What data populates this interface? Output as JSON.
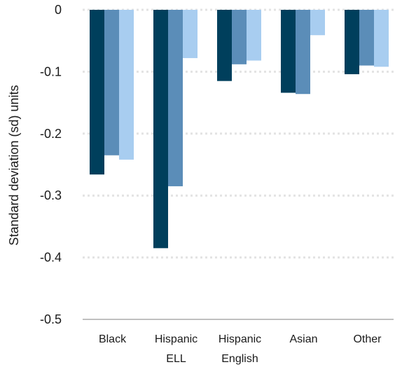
{
  "chart_data": {
    "type": "bar",
    "ylabel": "Standard deviation (sd) units",
    "ylim": [
      -0.5,
      0
    ],
    "yticks": [
      0,
      -0.1,
      -0.2,
      -0.3,
      -0.4,
      -0.5
    ],
    "ytick_labels": [
      "0",
      "-0.1",
      "-0.2",
      "-0.3",
      "-0.4",
      "-0.5"
    ],
    "grid": "horizontal dotted",
    "legend": "none",
    "categories": [
      [
        "Black"
      ],
      [
        "Hispanic",
        "ELL"
      ],
      [
        "Hispanic",
        "English"
      ],
      [
        "Asian"
      ],
      [
        "Other"
      ]
    ],
    "series": [
      {
        "color": "#003f5c",
        "values": [
          -0.266,
          -0.385,
          -0.115,
          -0.134,
          -0.104
        ]
      },
      {
        "color": "#5b8db8",
        "values": [
          -0.235,
          -0.285,
          -0.088,
          -0.136,
          -0.09
        ]
      },
      {
        "color": "#a8cdf0",
        "values": [
          -0.242,
          -0.078,
          -0.082,
          -0.041,
          -0.092
        ]
      }
    ]
  }
}
